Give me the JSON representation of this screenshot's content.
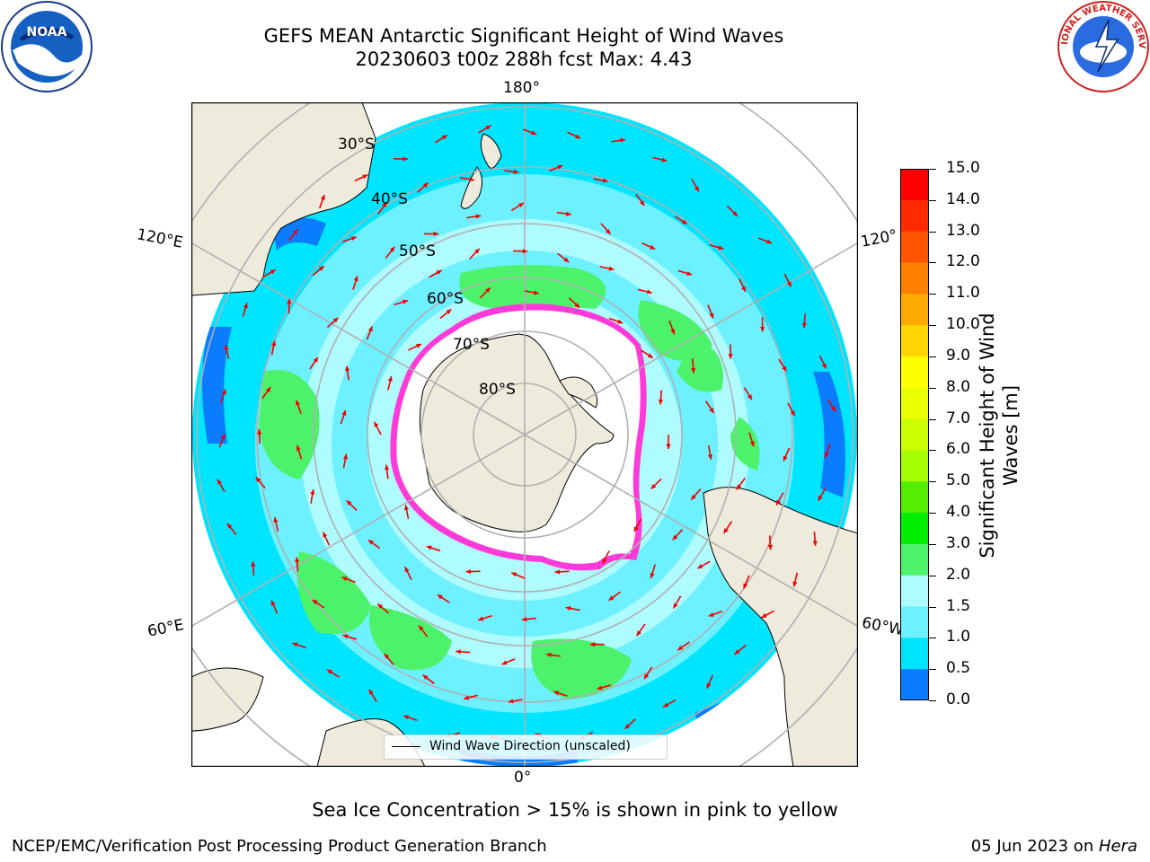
{
  "title": {
    "line1": "GEFS MEAN Antarctic Significant Height of Wind Waves",
    "line2": "20230603 t00z 288h fcst   Max: 4.43"
  },
  "map": {
    "projection": "south-polar-stereographic",
    "longitude_labels": {
      "top": "180°",
      "bottom": "0°",
      "left_upper": "120°E",
      "left_lower": "60°E",
      "right_upper": "120°",
      "right_lower": "60°W"
    },
    "latitude_labels": [
      "30°S",
      "40°S",
      "50°S",
      "60°S",
      "70°S",
      "80°S"
    ],
    "colors": {
      "land": "#efebdc",
      "ocean_low": "#0000ff",
      "ocean_1": "#0a7cff",
      "ocean_2": "#00e5ff",
      "ocean_3": "#6df0ff",
      "ocean_4": "#aefcff",
      "ocean_green": "#4cf26a",
      "sea_ice": "#ff3ad8",
      "arrow": "#ee0000",
      "gridline": "#b0b0b0"
    }
  },
  "legend": {
    "entry": "Wind Wave Direction (unscaled)"
  },
  "colorbar": {
    "label": "Significant Height of Wind Waves [m]",
    "ticks": [
      "15.0",
      "14.0",
      "13.0",
      "12.0",
      "11.0",
      "10.0",
      "9.0",
      "8.0",
      "7.0",
      "6.0",
      "5.0",
      "4.0",
      "3.0",
      "2.0",
      "1.5",
      "1.0",
      "0.5",
      "0.0"
    ],
    "bands": [
      "#ff0000",
      "#ff2a00",
      "#ff5500",
      "#ff8000",
      "#ffaa00",
      "#ffd500",
      "#ffff00",
      "#eaff00",
      "#ccff00",
      "#a6ff00",
      "#55ee00",
      "#00ee00",
      "#4cf26a",
      "#aefcff",
      "#6df0ff",
      "#00e5ff",
      "#0a7cff",
      "#0000ff"
    ]
  },
  "caption": "Sea Ice Concentration > 15% is shown in pink to yellow",
  "footer": {
    "left": "NCEP/EMC/Verification Post Processing Product Generation Branch",
    "date": "05 Jun 2023 on ",
    "host": "Hera"
  },
  "logos": {
    "left": "NOAA",
    "right": "NATIONAL WEATHER SERVICE"
  }
}
